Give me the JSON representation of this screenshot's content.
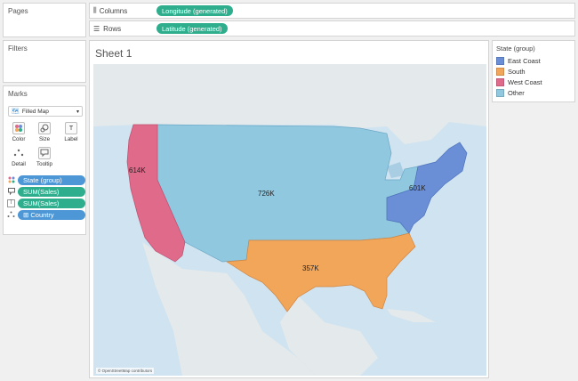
{
  "pages": {
    "title": "Pages"
  },
  "filters": {
    "title": "Filters"
  },
  "marks": {
    "title": "Marks",
    "mark_type": "Filled Map",
    "buttons": {
      "color": "Color",
      "size": "Size",
      "label": "Label",
      "detail": "Detail",
      "tooltip": "Tooltip"
    },
    "fields": [
      {
        "icon": "color-dots-icon",
        "label": "State (group)",
        "color": "blue"
      },
      {
        "icon": "tooltip-icon",
        "label": "SUM(Sales)",
        "color": "green"
      },
      {
        "icon": "label-icon",
        "label": "SUM(Sales)",
        "color": "green"
      },
      {
        "icon": "detail-icon",
        "label": "⊞ Country",
        "color": "blue"
      }
    ]
  },
  "shelves": {
    "columns": {
      "label": "Columns",
      "pill": "Longitude (generated)"
    },
    "rows": {
      "label": "Rows",
      "pill": "Latitude (generated)"
    }
  },
  "sheet": {
    "title": "Sheet 1",
    "attribution": "© OpenStreetMap contributors"
  },
  "legend": {
    "title": "State (group)",
    "items": [
      {
        "label": "East Coast",
        "color": "#6b8fd6"
      },
      {
        "label": "South",
        "color": "#f2a65a"
      },
      {
        "label": "West Coast",
        "color": "#e06a8a"
      },
      {
        "label": "Other",
        "color": "#90c8e0"
      }
    ]
  },
  "regions": {
    "west_coast": {
      "name": "West Coast",
      "value_label": "614K",
      "color": "#e06a8a"
    },
    "other": {
      "name": "Other",
      "value_label": "726K",
      "color": "#90c8e0"
    },
    "east_coast": {
      "name": "East Coast",
      "value_label": "601K",
      "color": "#6b8fd6"
    },
    "south": {
      "name": "South",
      "value_label": "357K",
      "color": "#f2a65a"
    }
  }
}
